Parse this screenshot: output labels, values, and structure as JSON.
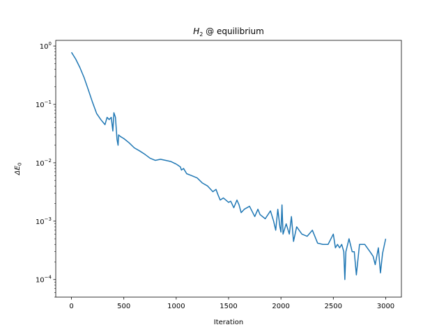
{
  "chart_data": {
    "type": "line",
    "title": {
      "base": "H",
      "sub": "2",
      "rest": " @ equilibrium"
    },
    "xlabel": "Iteration",
    "ylabel": {
      "base": "ΔE",
      "sub": "0"
    },
    "xlim": [
      -150,
      3150
    ],
    "ylim": [
      5e-05,
      1.25
    ],
    "yscale": "log",
    "grid": false,
    "xticks": [
      0,
      500,
      1000,
      1500,
      2000,
      2500,
      3000
    ],
    "xtick_labels": [
      "0",
      "500",
      "1000",
      "1500",
      "2000",
      "2500",
      "3000"
    ],
    "yticks": [
      0.0001,
      0.001,
      0.01,
      0.1,
      1
    ],
    "ytick_labels": [
      {
        "base": "10",
        "exp": "−4"
      },
      {
        "base": "10",
        "exp": "−3"
      },
      {
        "base": "10",
        "exp": "−2"
      },
      {
        "base": "10",
        "exp": "−1"
      },
      {
        "base": "10",
        "exp": "0"
      }
    ],
    "series": [
      {
        "color": "#1f77b4",
        "x": [
          0,
          40,
          80,
          120,
          160,
          200,
          240,
          280,
          320,
          340,
          360,
          380,
          395,
          405,
          420,
          435,
          445,
          450,
          470,
          500,
          550,
          600,
          650,
          700,
          750,
          800,
          850,
          900,
          950,
          1000,
          1040,
          1050,
          1070,
          1100,
          1150,
          1200,
          1250,
          1300,
          1350,
          1380,
          1400,
          1420,
          1450,
          1500,
          1520,
          1550,
          1580,
          1600,
          1620,
          1650,
          1700,
          1750,
          1780,
          1800,
          1850,
          1900,
          1930,
          1950,
          1970,
          1990,
          2000,
          2010,
          2020,
          2050,
          2080,
          2100,
          2120,
          2150,
          2200,
          2250,
          2300,
          2350,
          2400,
          2450,
          2500,
          2520,
          2540,
          2560,
          2580,
          2600,
          2610,
          2620,
          2650,
          2680,
          2700,
          2720,
          2750,
          2800,
          2850,
          2880,
          2900,
          2930,
          2950,
          2970,
          3000
        ],
        "y": [
          0.78,
          0.6,
          0.43,
          0.29,
          0.18,
          0.11,
          0.07,
          0.055,
          0.045,
          0.06,
          0.055,
          0.06,
          0.035,
          0.072,
          0.06,
          0.025,
          0.02,
          0.03,
          0.028,
          0.026,
          0.022,
          0.018,
          0.016,
          0.014,
          0.012,
          0.011,
          0.0115,
          0.011,
          0.0105,
          0.0095,
          0.0085,
          0.0075,
          0.008,
          0.0065,
          0.006,
          0.0055,
          0.0045,
          0.004,
          0.0032,
          0.0035,
          0.0028,
          0.0023,
          0.0025,
          0.0021,
          0.0022,
          0.0017,
          0.0023,
          0.0019,
          0.0014,
          0.0016,
          0.0018,
          0.0012,
          0.0016,
          0.0013,
          0.0011,
          0.0015,
          0.001,
          0.0007,
          0.0016,
          0.0008,
          0.00065,
          0.0019,
          0.0006,
          0.0009,
          0.0006,
          0.0012,
          0.00045,
          0.0008,
          0.0006,
          0.00055,
          0.0007,
          0.00042,
          0.0004,
          0.0004,
          0.0006,
          0.00035,
          0.0004,
          0.00035,
          0.0004,
          0.0003,
          0.0001,
          0.0003,
          0.0005,
          0.0003,
          0.0003,
          0.00012,
          0.0004,
          0.0004,
          0.0003,
          0.00025,
          0.00018,
          0.00035,
          0.00013,
          0.00028,
          0.0005
        ]
      }
    ]
  }
}
